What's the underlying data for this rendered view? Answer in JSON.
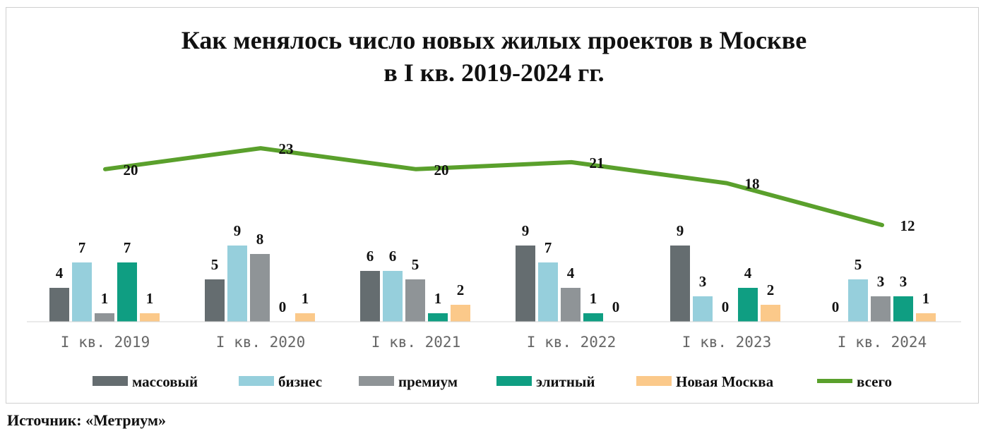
{
  "chart_data": {
    "type": "bar",
    "title_line1": "Как менялось число новых жилых проектов в Москве",
    "title_line2": "в I кв. 2019-2024 гг.",
    "categories": [
      "I кв. 2019",
      "I кв. 2020",
      "I кв. 2021",
      "I кв. 2022",
      "I кв. 2023",
      "I кв. 2024"
    ],
    "series": [
      {
        "name": "массовый",
        "color": "#656d70",
        "values": [
          4,
          5,
          6,
          9,
          9,
          0
        ]
      },
      {
        "name": "бизнес",
        "color": "#96cfdc",
        "values": [
          7,
          9,
          6,
          7,
          3,
          5
        ]
      },
      {
        "name": "премиум",
        "color": "#8f9497",
        "values": [
          1,
          8,
          5,
          4,
          0,
          3
        ]
      },
      {
        "name": "элитный",
        "color": "#0f9e82",
        "values": [
          7,
          0,
          1,
          1,
          4,
          3
        ]
      },
      {
        "name": "Новая Москва",
        "color": "#fbc98a",
        "values": [
          1,
          1,
          2,
          0,
          2,
          1
        ]
      }
    ],
    "line_series": {
      "name": "всего",
      "color": "#5aa02c",
      "values": [
        20,
        23,
        20,
        21,
        18,
        12
      ]
    },
    "legend_position": "bottom",
    "grid": false
  },
  "source": "Источник: «Метриум»"
}
